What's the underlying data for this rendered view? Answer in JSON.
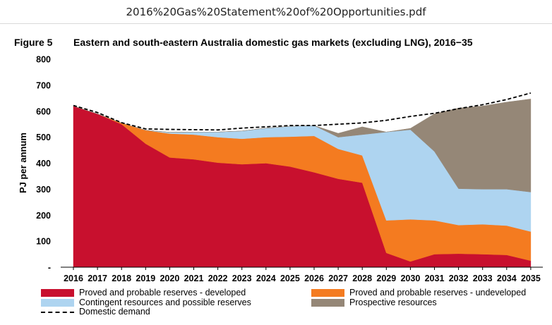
{
  "window": {
    "title": "2016%20Gas%20Statement%20of%20Opportunities.pdf"
  },
  "figure": {
    "label": "Figure 5",
    "title": "Eastern and south-eastern Australia domestic gas markets (excluding LNG), 2016−35"
  },
  "chart_data": {
    "type": "area",
    "stacked": true,
    "ylabel": "PJ per annum",
    "xlabel": "",
    "ylim": [
      0,
      800
    ],
    "yticks": [
      0,
      100,
      200,
      300,
      400,
      500,
      600,
      700,
      800
    ],
    "ytick_labels": [
      "-",
      "100",
      "200",
      "300",
      "400",
      "500",
      "600",
      "700",
      "800"
    ],
    "x": [
      "2016",
      "2017",
      "2018",
      "2019",
      "2020",
      "2021",
      "2022",
      "2023",
      "2024",
      "2025",
      "2026",
      "2027",
      "2028",
      "2029",
      "2030",
      "2031",
      "2032",
      "2033",
      "2034",
      "2035"
    ],
    "grid": false,
    "legend_position": "bottom",
    "series": [
      {
        "name": "Proved and probable reserves - developed",
        "color": "#c8102e",
        "values": [
          620,
          590,
          550,
          475,
          422,
          415,
          402,
          396,
          400,
          387,
          365,
          340,
          325,
          55,
          22,
          50,
          52,
          50,
          47,
          25
        ]
      },
      {
        "name": "Proved and probable reserves - undeveloped",
        "color": "#f47b20",
        "values": [
          0,
          0,
          5,
          52,
          92,
          95,
          98,
          98,
          100,
          115,
          140,
          115,
          105,
          125,
          162,
          130,
          110,
          115,
          113,
          112
        ]
      },
      {
        "name": "Contingent resources and possible reserves",
        "color": "#aed4f0",
        "values": [
          0,
          0,
          0,
          0,
          5,
          10,
          20,
          30,
          35,
          40,
          40,
          45,
          80,
          340,
          345,
          265,
          140,
          135,
          140,
          152
        ]
      },
      {
        "name": "Prospective resources",
        "color": "#958777",
        "values": [
          0,
          0,
          0,
          0,
          0,
          0,
          0,
          0,
          0,
          0,
          0,
          15,
          30,
          0,
          5,
          145,
          310,
          320,
          335,
          358
        ]
      },
      {
        "name": "Domestic demand",
        "kind": "line",
        "style": "dashed",
        "color": "#000000",
        "values": [
          622,
          595,
          556,
          532,
          530,
          529,
          528,
          535,
          540,
          545,
          545,
          550,
          555,
          565,
          580,
          592,
          610,
          625,
          645,
          670
        ]
      }
    ]
  }
}
